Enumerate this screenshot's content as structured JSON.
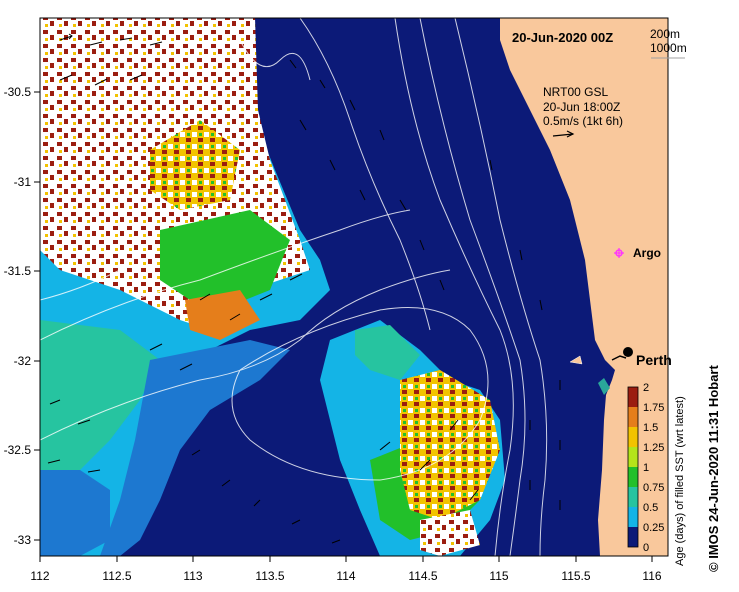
{
  "title": "20-Jun-2020 00Z",
  "depth_legend": [
    "200m",
    "1000m"
  ],
  "current_info": {
    "line1": "NRT00 GSL",
    "line2": "20-Jun 18:00Z",
    "line3": "0.5m/s (1kt 6h)"
  },
  "labels": {
    "argo": "Argo",
    "perth": "Perth"
  },
  "axes": {
    "x_ticks": [
      "112",
      "112.5",
      "113",
      "113.5",
      "114",
      "114.5",
      "115",
      "115.5",
      "116"
    ],
    "y_ticks": [
      "-30.5",
      "-31",
      "-31.5",
      "-32",
      "-32.5",
      "-33"
    ]
  },
  "colorbar": {
    "title": "Age (days) of filled SST (wrt latest)",
    "ticks": [
      "2",
      "1.75",
      "1.5",
      "1.25",
      "1",
      "0.75",
      "0.5",
      "0.25",
      "0"
    ]
  },
  "credit": "© IMOS 24-Jun-2020 11:31 Hobart",
  "colors": {
    "ocean_deep": "#0c1a78",
    "land": "#f9c89c",
    "cloud": "#ffffff",
    "argo_marker": "#ff33ff"
  }
}
